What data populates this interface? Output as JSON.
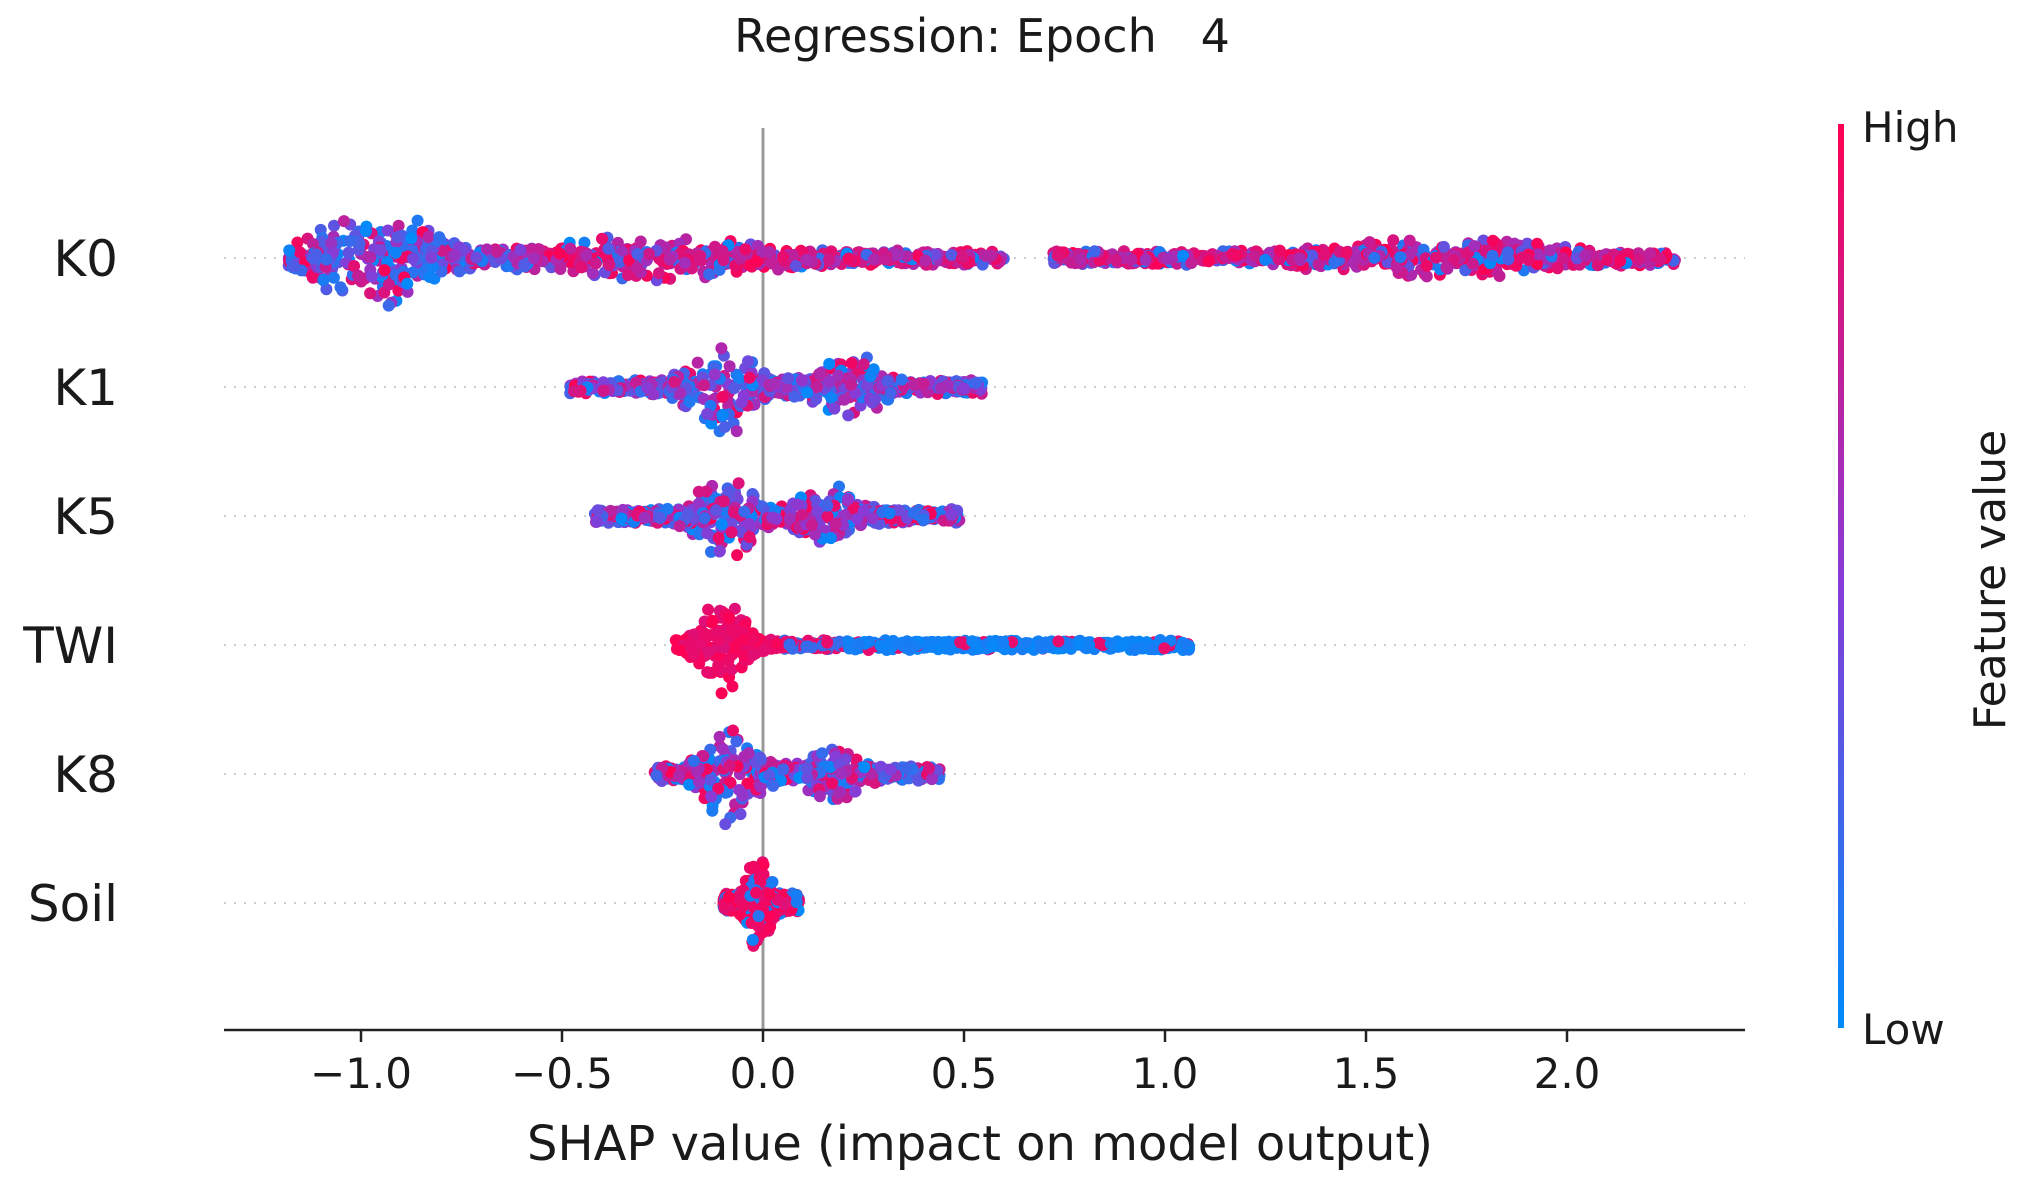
{
  "chart_data": {
    "type": "scatter",
    "subtype": "shap-beeswarm-summary",
    "title": "Regression: Epoch   4",
    "xlabel": "SHAP value (impact on model output)",
    "xlim": [
      -1.35,
      2.45
    ],
    "xticks": [
      -1.0,
      -0.5,
      0.0,
      0.5,
      1.0,
      1.5,
      2.0
    ],
    "xtick_labels": [
      "−1.0",
      "−0.5",
      "0.0",
      "0.5",
      "1.0",
      "1.5",
      "2.0"
    ],
    "features": [
      {
        "name": "K0",
        "min": -1.18,
        "max": 2.27,
        "gap": [
          0.6,
          0.72
        ],
        "peaks": [
          {
            "x": -0.97,
            "w": 0.16,
            "h": 1.0
          },
          {
            "x": -0.28,
            "w": 0.3,
            "h": 0.3
          },
          {
            "x": 1.7,
            "w": 0.3,
            "h": 0.28
          }
        ],
        "base": 0.14,
        "color_rule": "mixed-low-left-high-right"
      },
      {
        "name": "K1",
        "min": -0.48,
        "max": 0.55,
        "peaks": [
          {
            "x": -0.1,
            "w": 0.08,
            "h": 1.0
          },
          {
            "x": 0.22,
            "w": 0.09,
            "h": 0.55
          }
        ],
        "base": 0.15,
        "color_rule": "mixed"
      },
      {
        "name": "K5",
        "min": -0.42,
        "max": 0.49,
        "peaks": [
          {
            "x": -0.09,
            "w": 0.07,
            "h": 1.0
          },
          {
            "x": 0.16,
            "w": 0.08,
            "h": 0.5
          }
        ],
        "base": 0.15,
        "color_rule": "mixed"
      },
      {
        "name": "TWI",
        "min": -0.22,
        "max": 1.06,
        "peaks": [
          {
            "x": -0.1,
            "w": 0.06,
            "h": 1.0
          }
        ],
        "base": 0.1,
        "color_rule": "high-left-low-right"
      },
      {
        "name": "K8",
        "min": -0.27,
        "max": 0.44,
        "peaks": [
          {
            "x": -0.08,
            "w": 0.07,
            "h": 1.0
          },
          {
            "x": 0.17,
            "w": 0.07,
            "h": 0.5
          }
        ],
        "base": 0.15,
        "color_rule": "mixed"
      },
      {
        "name": "Soil",
        "min": -0.1,
        "max": 0.09,
        "peaks": [
          {
            "x": -0.01,
            "w": 0.03,
            "h": 1.0
          }
        ],
        "base": 0.2,
        "color_rule": "mostly-high"
      }
    ],
    "colorbar": {
      "label": "Feature value",
      "high_label": "High",
      "low_label": "Low",
      "high_color": "#ff0052",
      "low_color": "#008bfb"
    }
  }
}
